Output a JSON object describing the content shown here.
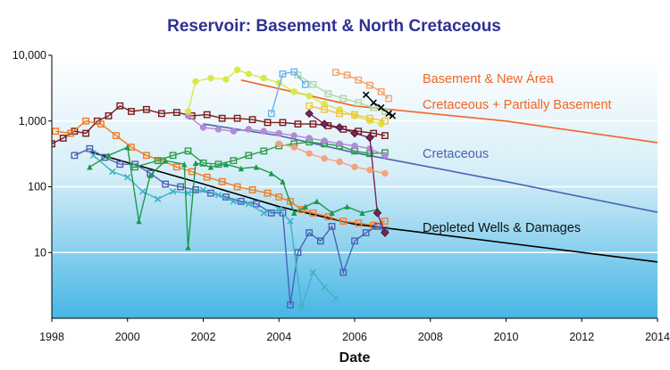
{
  "chart_data": {
    "type": "scatter",
    "title": "Reservoir: Basement & North Cretaceous",
    "xlabel": "Date",
    "ylabel": "",
    "xlim": [
      1998,
      2014
    ],
    "ylim": [
      1,
      10000
    ],
    "yscale": "log",
    "x_ticks": [
      "1998",
      "2000",
      "2002",
      "2004",
      "2006",
      "2008",
      "2010",
      "2012",
      "2014"
    ],
    "y_ticks": [
      {
        "value": 10,
        "label": "10"
      },
      {
        "value": 100,
        "label": "100"
      },
      {
        "value": 1000,
        "label": "1,000"
      },
      {
        "value": 10000,
        "label": "10,000"
      }
    ],
    "grid": "horizontal",
    "background": "light blue gradient",
    "forecasts": [
      {
        "label": "Basement & New Área",
        "color": "#f26522",
        "points": [
          [
            2003.0,
            4200
          ],
          [
            2006.0,
            1700
          ],
          [
            2010.0,
            1000
          ],
          [
            2014.0,
            470
          ]
        ]
      },
      {
        "label": "Cretaceous + Partially Basement",
        "color": "#f26522",
        "points": []
      },
      {
        "label": "Cretaceous",
        "color": "#4a62b4",
        "points": [
          [
            2002.0,
            900
          ],
          [
            2004.0,
            600
          ],
          [
            2006.0,
            330
          ],
          [
            2010.0,
            120
          ],
          [
            2014.0,
            41
          ]
        ]
      },
      {
        "label": "Depleted Wells & Damages",
        "color": "#000000",
        "points": [
          [
            1999.0,
            340
          ],
          [
            2002.0,
            110
          ],
          [
            2004.0,
            50
          ],
          [
            2006.0,
            27
          ],
          [
            2010.0,
            14
          ],
          [
            2014.0,
            7.2
          ]
        ]
      }
    ],
    "series": [
      {
        "color": "#7b1a1a",
        "marker": "square",
        "x": [
          1998.0,
          1998.3,
          1998.6,
          1998.9,
          1999.2,
          1999.5,
          1999.8,
          2000.1,
          2000.5,
          2000.9,
          2001.3,
          2001.7,
          2002.1,
          2002.5,
          2002.9,
          2003.3,
          2003.7,
          2004.1,
          2004.5,
          2004.9,
          2005.3,
          2005.7,
          2006.1,
          2006.5,
          2006.8
        ],
        "y": [
          450,
          550,
          700,
          650,
          1000,
          1200,
          1700,
          1400,
          1500,
          1300,
          1350,
          1200,
          1250,
          1100,
          1100,
          1050,
          950,
          950,
          900,
          900,
          850,
          750,
          700,
          650,
          600
        ]
      },
      {
        "color": "#f47b20",
        "marker": "square",
        "x": [
          1998.1,
          1998.5,
          1998.9,
          1999.3,
          1999.7,
          2000.1,
          2000.5,
          2000.9,
          2001.3,
          2001.7,
          2002.1,
          2002.5,
          2002.9,
          2003.3,
          2003.7,
          2004.0,
          2004.3,
          2004.6,
          2004.9,
          2005.3,
          2005.7,
          2006.1,
          2006.5,
          2006.8
        ],
        "y": [
          700,
          650,
          1000,
          900,
          600,
          400,
          300,
          250,
          200,
          170,
          140,
          120,
          100,
          90,
          80,
          70,
          60,
          45,
          40,
          35,
          30,
          28,
          26,
          30
        ]
      },
      {
        "color": "#4a62b4",
        "marker": "square",
        "x": [
          1998.6,
          1999.0,
          1999.4,
          1999.8,
          2000.2,
          2000.6,
          2001.0,
          2001.4,
          2001.8,
          2002.2,
          2002.6,
          2003.0,
          2003.4,
          2003.8,
          2004.1,
          2004.3,
          2004.5,
          2004.8,
          2005.1,
          2005.4,
          2005.7,
          2006.0,
          2006.3,
          2006.6,
          2006.8
        ],
        "y": [
          300,
          380,
          280,
          220,
          220,
          160,
          110,
          100,
          90,
          80,
          70,
          60,
          55,
          40,
          40,
          1.6,
          10,
          20,
          15,
          25,
          5,
          15,
          20,
          25,
          22
        ]
      },
      {
        "color": "#3fb3c6",
        "marker": "x",
        "x": [
          1999.1,
          1999.6,
          2000.0,
          2000.4,
          2000.8,
          2001.2,
          2001.6,
          2002.0,
          2002.4,
          2002.8,
          2003.2,
          2003.6,
          2004.0,
          2004.3,
          2004.6,
          2004.9,
          2005.2,
          2005.5
        ],
        "y": [
          300,
          170,
          140,
          85,
          65,
          85,
          80,
          90,
          75,
          60,
          55,
          40,
          45,
          30,
          1.5,
          5,
          3,
          2
        ]
      },
      {
        "color": "#1a9a4a",
        "marker": "triangle",
        "x": [
          1999.0,
          1999.5,
          2000.0,
          2000.3,
          2000.6,
          2001.0,
          2001.5,
          2001.6,
          2001.8,
          2002.2,
          2002.6,
          2003.0,
          2003.4,
          2003.8,
          2004.1,
          2004.4,
          2004.7,
          2005.0,
          2005.4,
          2005.8,
          2006.2,
          2006.6
        ],
        "y": [
          200,
          300,
          400,
          30,
          150,
          250,
          220,
          12,
          230,
          200,
          220,
          190,
          200,
          160,
          120,
          40,
          50,
          60,
          40,
          50,
          40,
          45
        ]
      },
      {
        "color": "#2a9d48",
        "marker": "square",
        "x": [
          2000.2,
          2000.8,
          2001.2,
          2001.6,
          2002.0,
          2002.4,
          2002.8,
          2003.2,
          2003.6,
          2004.0,
          2004.4,
          2004.8,
          2005.2,
          2005.6,
          2006.0,
          2006.4,
          2006.8
        ],
        "y": [
          200,
          250,
          300,
          350,
          230,
          220,
          250,
          300,
          350,
          420,
          450,
          480,
          450,
          420,
          350,
          320,
          330
        ]
      },
      {
        "color": "#b38ad6",
        "marker": "circle",
        "x": [
          2001.6,
          2002.0,
          2002.4,
          2002.8,
          2003.2,
          2003.6,
          2004.0,
          2004.4,
          2004.8,
          2005.2,
          2005.6,
          2006.0,
          2006.4,
          2006.8
        ],
        "y": [
          1200,
          800,
          750,
          700,
          750,
          700,
          650,
          600,
          550,
          500,
          450,
          420,
          380,
          300
        ]
      },
      {
        "color": "#d8e84a",
        "marker": "circle",
        "x": [
          2001.6,
          2001.8,
          2002.2,
          2002.6,
          2002.9,
          2003.2,
          2003.6,
          2004.0,
          2004.4,
          2004.8,
          2005.2,
          2005.6,
          2006.0,
          2006.4,
          2006.7
        ],
        "y": [
          1400,
          4000,
          4500,
          4300,
          6000,
          5200,
          4500,
          3800,
          2800,
          2400,
          1800,
          1500,
          1200,
          1000,
          900
        ]
      },
      {
        "color": "#f6a26a",
        "marker": "square",
        "x": [
          2005.5,
          2005.8,
          2006.1,
          2006.4,
          2006.7,
          2006.9
        ],
        "y": [
          5500,
          5000,
          4200,
          3500,
          2800,
          2200
        ]
      },
      {
        "color": "#b0d8a8",
        "marker": "square",
        "x": [
          2004.5,
          2004.9,
          2005.3,
          2005.7,
          2006.1,
          2006.5,
          2006.8
        ],
        "y": [
          5000,
          3600,
          2600,
          2200,
          1900,
          1600,
          1400
        ]
      },
      {
        "color": "#f6c23c",
        "marker": "square",
        "x": [
          2004.8,
          2005.2,
          2005.6,
          2006.0,
          2006.4,
          2006.8
        ],
        "y": [
          1700,
          1500,
          1300,
          1250,
          1100,
          1000
        ]
      },
      {
        "color": "#6ab3e6",
        "marker": "square",
        "x": [
          2003.8,
          2004.1,
          2004.4,
          2004.7
        ],
        "y": [
          1300,
          5200,
          5600,
          3600
        ]
      },
      {
        "color": "#7b2255",
        "marker": "diamond",
        "x": [
          2004.8,
          2005.2,
          2005.6,
          2006.0,
          2006.4,
          2006.6,
          2006.8
        ],
        "y": [
          1300,
          900,
          800,
          650,
          560,
          40,
          20
        ]
      },
      {
        "color": "#f2a37f",
        "marker": "circle",
        "x": [
          2004.0,
          2004.4,
          2004.8,
          2005.2,
          2005.6,
          2006.0,
          2006.4,
          2006.8
        ],
        "y": [
          450,
          400,
          320,
          270,
          240,
          200,
          180,
          160
        ]
      },
      {
        "color": "#000000",
        "marker": "x",
        "x": [
          2006.3,
          2006.5,
          2006.7,
          2006.9,
          2007.0
        ],
        "y": [
          2500,
          1900,
          1600,
          1300,
          1200
        ]
      }
    ]
  }
}
